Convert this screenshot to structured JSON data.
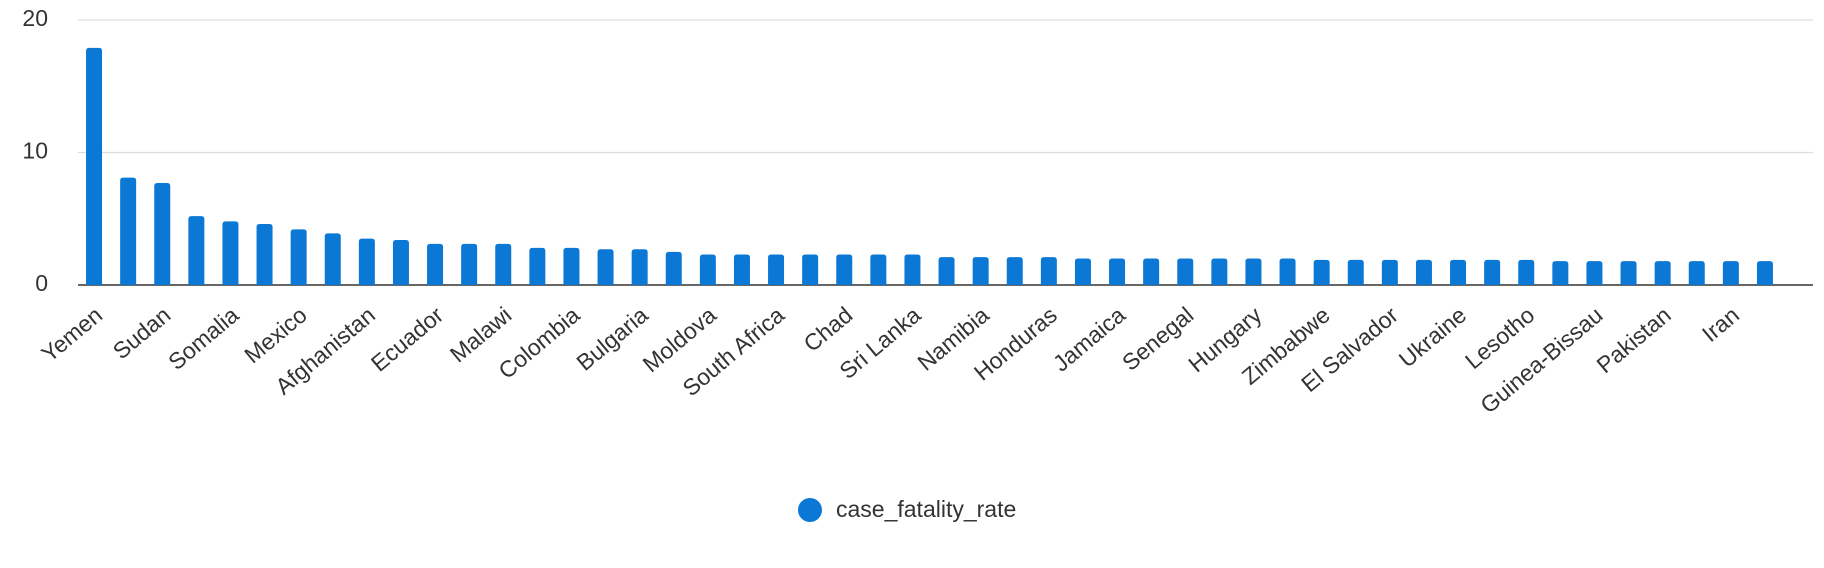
{
  "chart_data": {
    "type": "bar",
    "categories": [
      "Yemen",
      null,
      "Sudan",
      null,
      "Somalia",
      null,
      "Mexico",
      null,
      "Afghanistan",
      null,
      "Ecuador",
      null,
      "Malawi",
      null,
      "Colombia",
      null,
      "Bulgaria",
      null,
      "Moldova",
      null,
      "South Africa",
      null,
      "Chad",
      null,
      "Sri Lanka",
      null,
      "Namibia",
      null,
      "Honduras",
      null,
      "Jamaica",
      null,
      "Senegal",
      null,
      "Hungary",
      null,
      "Zimbabwe",
      null,
      "El Salvador",
      null,
      "Ukraine",
      null,
      "Lesotho",
      null,
      "Guinea-Bissau",
      null,
      "Pakistan",
      null,
      "Iran",
      null
    ],
    "series": [
      {
        "name": "case_fatality_rate",
        "color": "#0b78d6",
        "values": [
          17.9,
          8.1,
          7.7,
          5.2,
          4.8,
          4.6,
          4.2,
          3.9,
          3.5,
          3.4,
          3.1,
          3.1,
          3.1,
          2.8,
          2.8,
          2.7,
          2.7,
          2.5,
          2.3,
          2.3,
          2.3,
          2.3,
          2.3,
          2.3,
          2.3,
          2.1,
          2.1,
          2.1,
          2.1,
          2.0,
          2.0,
          2.0,
          2.0,
          2.0,
          2.0,
          2.0,
          1.9,
          1.9,
          1.9,
          1.9,
          1.9,
          1.9,
          1.9,
          1.8,
          1.8,
          1.8,
          1.8,
          1.8,
          1.8,
          1.8
        ]
      }
    ],
    "ylim": [
      0,
      20
    ],
    "yticks": [
      0,
      10,
      20
    ],
    "grid": true,
    "legend": "bottom"
  }
}
